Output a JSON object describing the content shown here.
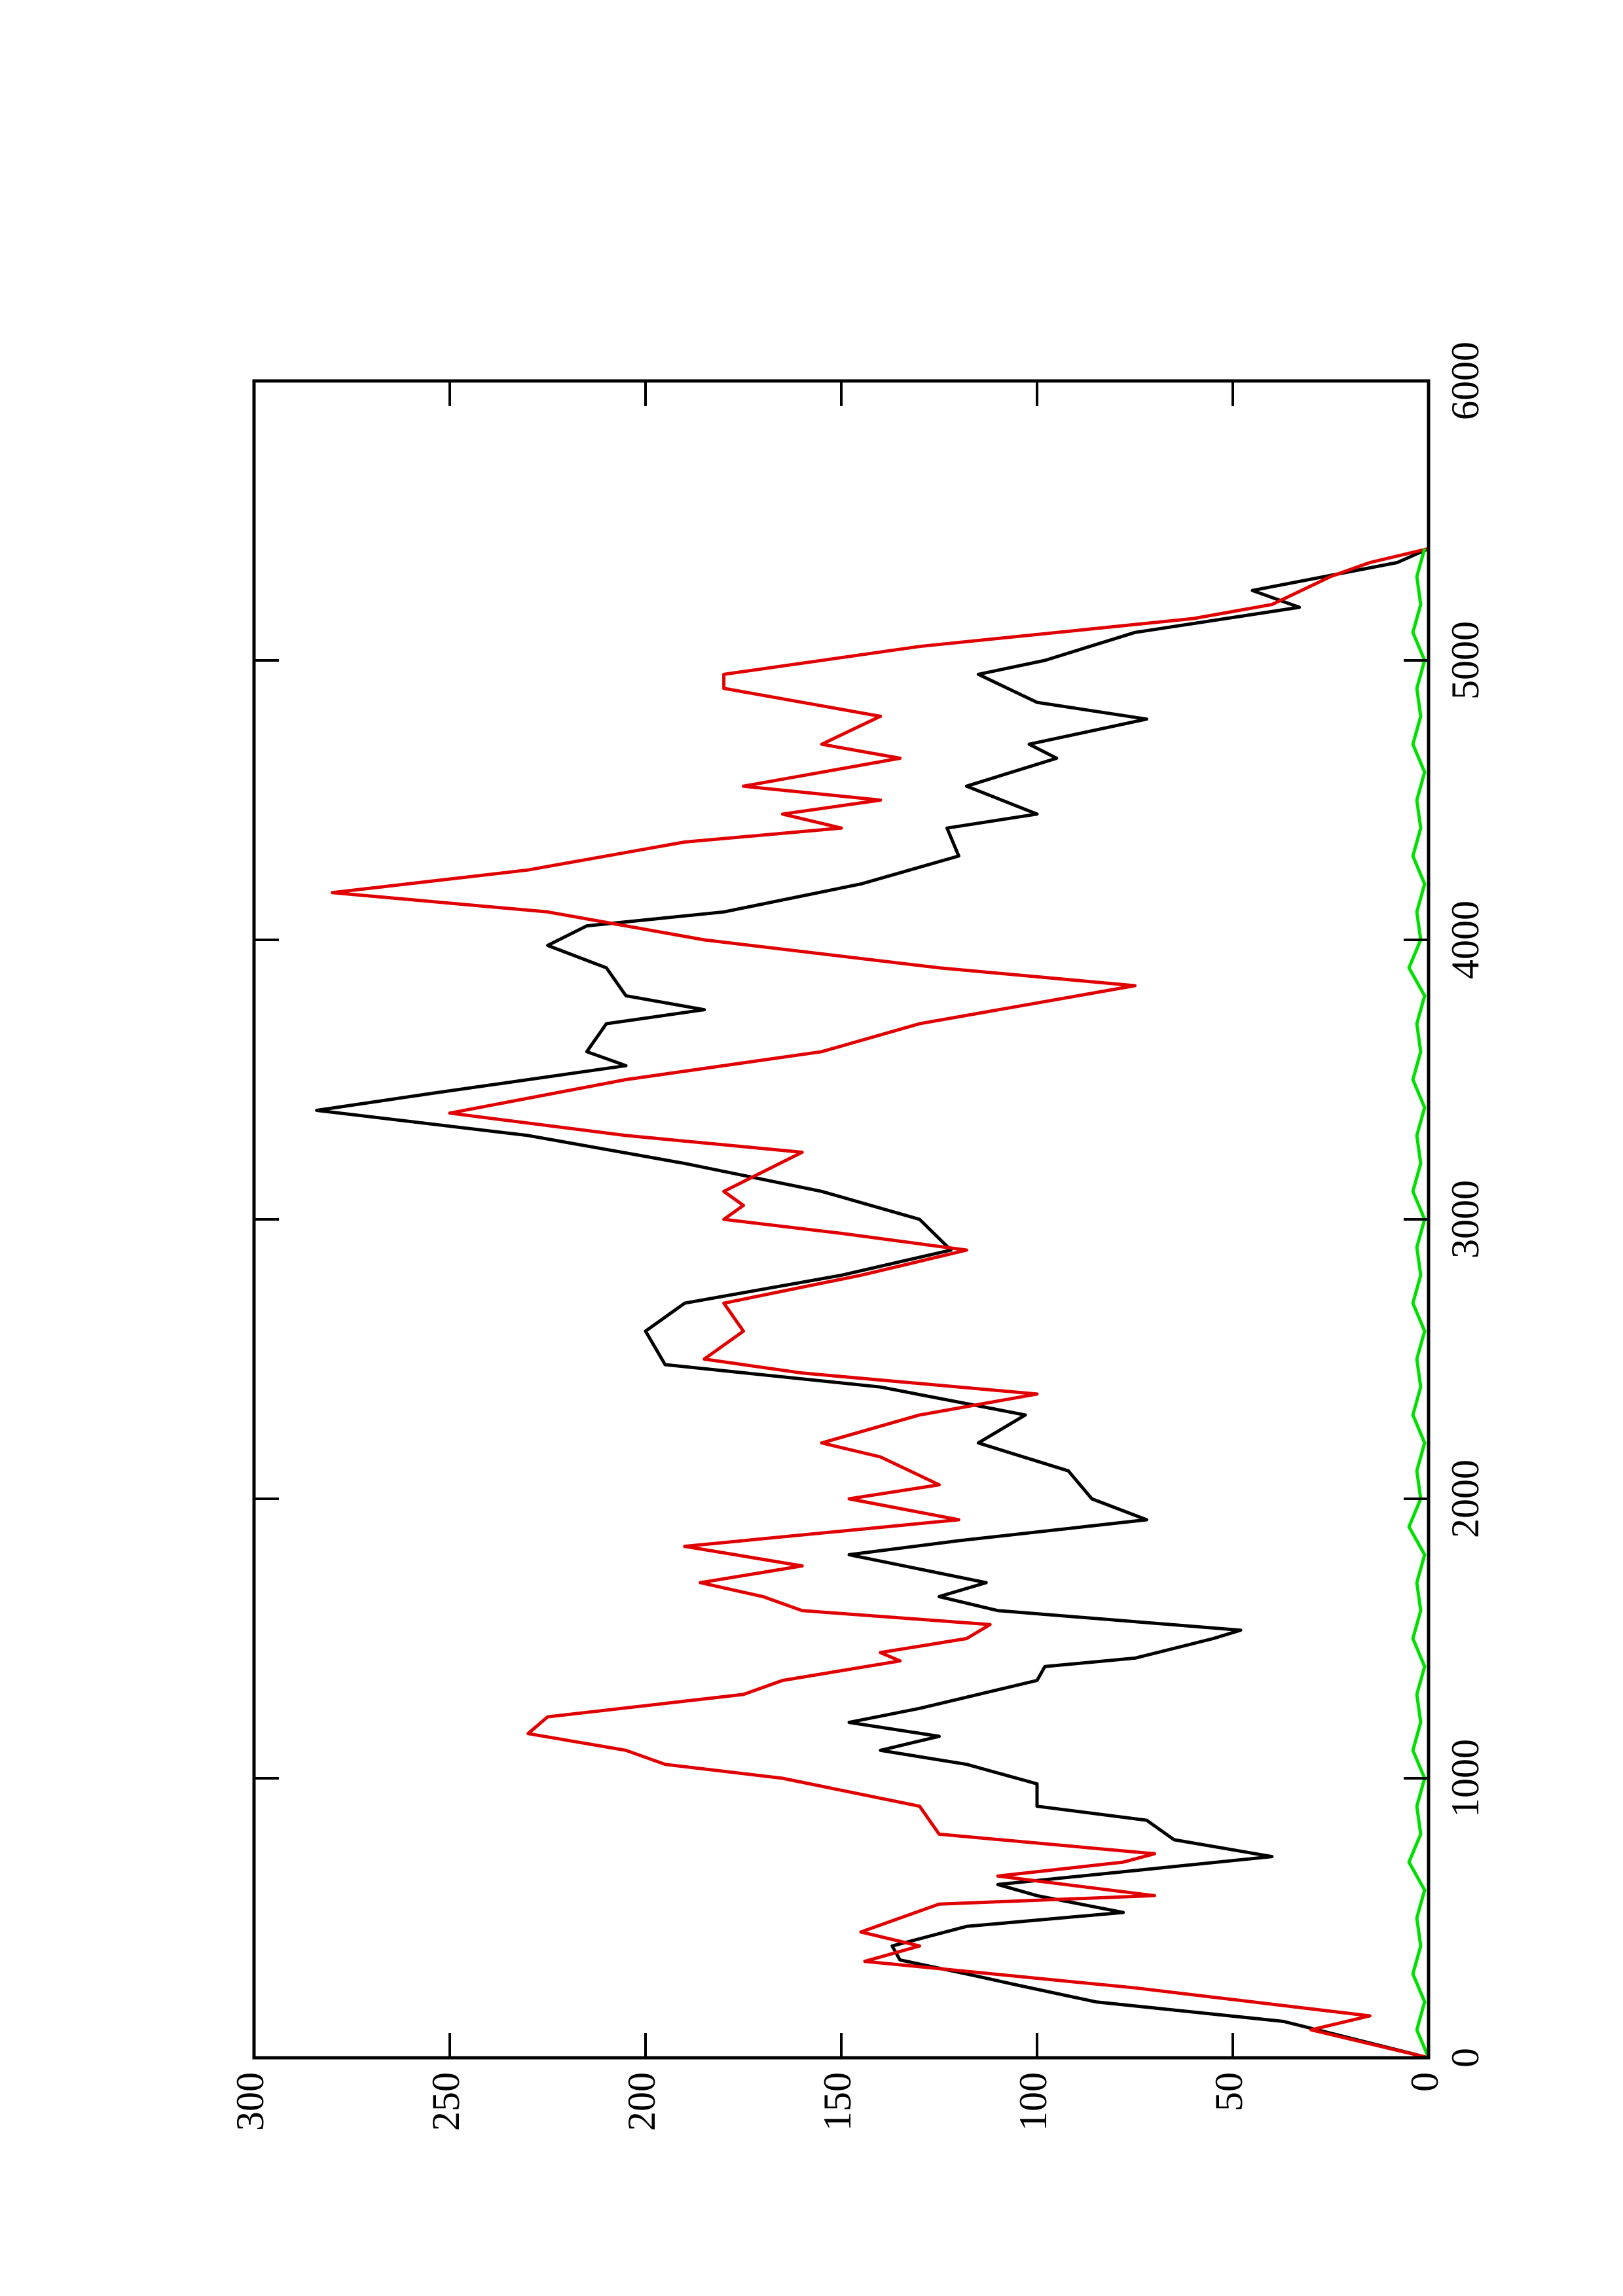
{
  "chart_data": {
    "type": "line",
    "xlim": [
      0,
      6000
    ],
    "xticks": [
      0,
      1000,
      2000,
      3000,
      4000,
      5000,
      6000
    ],
    "ylim": [
      0,
      300
    ],
    "yticks": [
      0,
      50,
      100,
      150,
      200,
      250,
      300
    ],
    "series": [
      {
        "color": "#000000",
        "x": [
          0,
          130,
          200,
          260,
          300,
          350,
          400,
          470,
          520,
          580,
          620,
          720,
          780,
          850,
          900,
          980,
          1050,
          1100,
          1150,
          1200,
          1250,
          1350,
          1400,
          1430,
          1500,
          1530,
          1600,
          1650,
          1700,
          1800,
          1850,
          1925,
          2000,
          2100,
          2200,
          2300,
          2400,
          2480,
          2600,
          2700,
          2800,
          2890,
          3000,
          3100,
          3200,
          3300,
          3390,
          3450,
          3550,
          3600,
          3700,
          3750,
          3800,
          3900,
          3980,
          4050,
          4100,
          4200,
          4300,
          4400,
          4450,
          4550,
          4650,
          4700,
          4790,
          4850,
          4950,
          5000,
          5100,
          5190,
          5250,
          5350,
          5400
        ],
        "values": [
          0,
          37,
          85,
          105,
          118,
          135,
          137,
          118,
          78,
          100,
          110,
          40,
          65,
          72,
          100,
          100,
          118,
          140,
          125,
          148,
          130,
          100,
          98,
          75,
          55,
          48,
          110,
          125,
          113,
          148,
          120,
          72,
          86,
          92,
          115,
          103,
          140,
          195,
          200,
          190,
          150,
          122,
          130,
          155,
          190,
          230,
          284,
          255,
          205,
          215,
          210,
          185,
          205,
          210,
          225,
          215,
          180,
          145,
          120,
          123,
          100,
          118,
          95,
          102,
          72,
          100,
          115,
          98,
          75,
          33,
          45,
          8,
          0
        ]
      },
      {
        "color": "#e00000",
        "x": [
          0,
          100,
          150,
          250,
          345,
          400,
          450,
          550,
          580,
          650,
          700,
          730,
          800,
          900,
          1000,
          1050,
          1100,
          1160,
          1220,
          1300,
          1350,
          1420,
          1450,
          1500,
          1550,
          1600,
          1650,
          1700,
          1760,
          1830,
          1925,
          2000,
          2050,
          2150,
          2200,
          2300,
          2375,
          2450,
          2500,
          2600,
          2700,
          2800,
          2890,
          2950,
          3000,
          3050,
          3100,
          3240,
          3300,
          3380,
          3500,
          3600,
          3700,
          3836,
          3900,
          4000,
          4100,
          4169,
          4250,
          4350,
          4400,
          4450,
          4500,
          4550,
          4650,
          4700,
          4800,
          4850,
          4900,
          4950,
          5050,
          5150,
          5200,
          5300,
          5350,
          5400
        ],
        "values": [
          0,
          30,
          15,
          75,
          144,
          130,
          145,
          125,
          70,
          110,
          78,
          70,
          125,
          130,
          165,
          195,
          205,
          230,
          225,
          175,
          165,
          135,
          140,
          118,
          112,
          160,
          170,
          186,
          160,
          190,
          120,
          148,
          125,
          140,
          155,
          130,
          100,
          160,
          185,
          175,
          180,
          145,
          118,
          150,
          180,
          175,
          180,
          160,
          205,
          250,
          205,
          155,
          130,
          75,
          125,
          185,
          225,
          280,
          230,
          190,
          150,
          165,
          140,
          175,
          135,
          155,
          140,
          160,
          180,
          180,
          130,
          60,
          40,
          25,
          15,
          0
        ]
      },
      {
        "color": "#00e000",
        "x": [
          0,
          100,
          200,
          300,
          400,
          500,
          600,
          700,
          800,
          900,
          1000,
          1100,
          1200,
          1300,
          1400,
          1500,
          1600,
          1700,
          1800,
          1900,
          2000,
          2100,
          2200,
          2300,
          2400,
          2500,
          2600,
          2700,
          2800,
          2900,
          3000,
          3100,
          3200,
          3300,
          3400,
          3500,
          3600,
          3700,
          3800,
          3900,
          4000,
          4100,
          4200,
          4300,
          4400,
          4500,
          4600,
          4700,
          4800,
          4900,
          5000,
          5100,
          5200,
          5300,
          5400
        ],
        "values": [
          0,
          3,
          1,
          4,
          2,
          3,
          1,
          5,
          2,
          3,
          1,
          4,
          2,
          3,
          1,
          4,
          2,
          3,
          1,
          5,
          2,
          3,
          1,
          4,
          2,
          3,
          1,
          4,
          2,
          3,
          1,
          4,
          2,
          3,
          1,
          4,
          2,
          3,
          1,
          5,
          2,
          3,
          1,
          4,
          2,
          3,
          1,
          4,
          2,
          3,
          1,
          4,
          2,
          3,
          1
        ]
      }
    ]
  }
}
